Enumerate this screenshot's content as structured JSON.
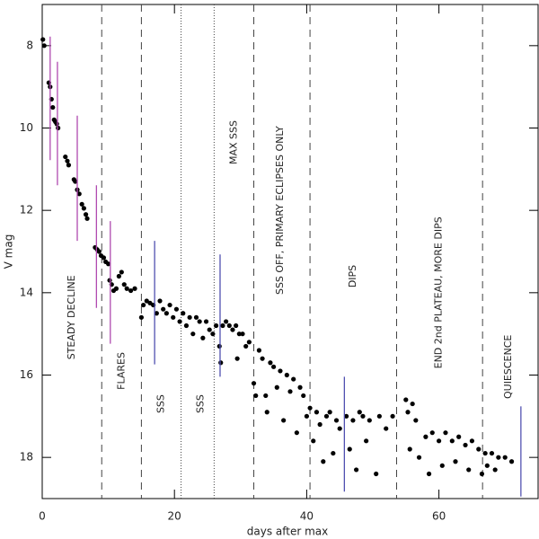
{
  "chart_data": {
    "type": "scatter",
    "x_label": "days after max",
    "y_label": "V mag",
    "xlim": [
      0,
      75
    ],
    "ylim": [
      19,
      7
    ],
    "xticks": [
      0,
      20,
      40,
      60
    ],
    "yticks": [
      8,
      10,
      12,
      14,
      16,
      18
    ],
    "color": "#000000",
    "x": [
      0.1,
      0.3,
      1.0,
      1.2,
      1.4,
      1.6,
      1.8,
      2.0,
      2.2,
      2.4,
      3.5,
      3.8,
      4.0,
      4.8,
      5.0,
      5.3,
      5.6,
      6.0,
      6.3,
      6.6,
      6.8,
      8.0,
      8.3,
      8.6,
      8.9,
      9.3,
      9.6,
      10.0,
      10.2,
      10.5,
      10.8,
      11.2,
      11.6,
      12.0,
      12.4,
      12.8,
      13.4,
      14.0,
      15.0,
      15.3,
      15.8,
      16.3,
      16.8,
      17.3,
      17.8,
      18.3,
      18.8,
      19.3,
      19.8,
      20.3,
      20.8,
      21.3,
      21.8,
      22.3,
      22.8,
      23.3,
      23.8,
      24.3,
      24.8,
      25.3,
      25.8,
      26.3,
      26.8,
      27.0,
      27.3,
      27.8,
      28.3,
      28.8,
      29.3,
      29.8,
      30.3,
      30.8,
      31.3,
      29.5,
      32.0,
      32.3,
      32.8,
      33.3,
      33.8,
      34.0,
      34.5,
      35.0,
      35.5,
      36.0,
      36.5,
      37.0,
      37.5,
      38.0,
      38.5,
      39.0,
      39.5,
      40.0,
      40.5,
      41.0,
      41.5,
      42.0,
      42.5,
      43.0,
      43.5,
      44.0,
      44.5,
      45.0,
      46.0,
      46.5,
      47.0,
      47.5,
      48.0,
      48.5,
      49.0,
      49.5,
      50.5,
      51.0,
      52.0,
      53.0,
      55.0,
      55.3,
      55.6,
      56.0,
      56.5,
      57.0,
      58.0,
      58.5,
      59.0,
      60.0,
      60.5,
      61.0,
      62.0,
      62.5,
      63.0,
      64.0,
      64.5,
      65.0,
      66.0,
      66.5,
      67.0,
      67.3,
      68.0,
      68.5,
      69.0,
      70.0,
      71.0
    ],
    "values": [
      7.85,
      8.0,
      8.9,
      9.0,
      9.3,
      9.5,
      9.8,
      9.85,
      9.9,
      10.0,
      10.7,
      10.8,
      10.9,
      11.25,
      11.3,
      11.5,
      11.6,
      11.85,
      11.95,
      12.1,
      12.2,
      12.9,
      12.95,
      13.0,
      13.1,
      13.15,
      13.25,
      13.3,
      13.7,
      13.8,
      13.95,
      13.9,
      13.6,
      13.5,
      13.8,
      13.9,
      13.95,
      13.9,
      14.6,
      14.3,
      14.2,
      14.25,
      14.3,
      14.5,
      14.2,
      14.4,
      14.5,
      14.3,
      14.6,
      14.4,
      14.7,
      14.5,
      14.8,
      14.6,
      15.0,
      14.6,
      14.7,
      15.1,
      14.7,
      14.9,
      15.0,
      14.8,
      15.3,
      15.7,
      14.8,
      14.7,
      14.8,
      14.9,
      14.8,
      15.0,
      15.0,
      15.3,
      15.2,
      15.6,
      16.2,
      16.5,
      15.4,
      15.6,
      16.5,
      16.9,
      15.7,
      15.8,
      16.3,
      15.9,
      17.1,
      16.0,
      16.4,
      16.1,
      17.4,
      16.3,
      16.5,
      17.0,
      16.8,
      17.6,
      16.9,
      17.2,
      18.1,
      17.0,
      16.9,
      17.9,
      17.1,
      17.3,
      17.0,
      17.8,
      17.1,
      18.3,
      16.9,
      17.0,
      17.6,
      17.1,
      18.4,
      17.0,
      17.3,
      17.0,
      16.6,
      16.9,
      17.8,
      16.7,
      17.1,
      18.0,
      17.5,
      18.4,
      17.4,
      17.6,
      18.2,
      17.4,
      17.6,
      18.1,
      17.5,
      17.7,
      18.3,
      17.6,
      17.8,
      18.4,
      17.9,
      18.2,
      17.9,
      18.3,
      18.0,
      18.0,
      18.1
    ],
    "error_bars": [
      {
        "x": 1.2,
        "low": 7.78,
        "high": 10.78,
        "color": "#b04ab0"
      },
      {
        "x": 2.3,
        "low": 8.39,
        "high": 11.39,
        "color": "#b04ab0"
      },
      {
        "x": 5.3,
        "low": 9.7,
        "high": 12.74,
        "color": "#b04ab0"
      },
      {
        "x": 8.2,
        "low": 11.39,
        "high": 14.37,
        "color": "#b04ab0"
      },
      {
        "x": 10.3,
        "low": 12.26,
        "high": 15.24,
        "color": "#b04ab0"
      },
      {
        "x": 17.0,
        "low": 12.74,
        "high": 15.74,
        "color": "#5050b0"
      },
      {
        "x": 26.9,
        "low": 13.07,
        "high": 16.04,
        "color": "#5050b0"
      },
      {
        "x": 45.7,
        "low": 16.04,
        "high": 18.83,
        "color": "#5050b0"
      },
      {
        "x": 72.4,
        "low": 16.76,
        "high": 18.95,
        "color": "#5050b0"
      }
    ],
    "vlines": [
      {
        "x": 9,
        "style": "dashed"
      },
      {
        "x": 15,
        "style": "dashed"
      },
      {
        "x": 21,
        "style": "dotted"
      },
      {
        "x": 26,
        "style": "dotted"
      },
      {
        "x": 32,
        "style": "dashed"
      },
      {
        "x": 40.5,
        "style": "dashed"
      },
      {
        "x": 53.6,
        "style": "dashed"
      },
      {
        "x": 66.6,
        "style": "dashed"
      }
    ],
    "annotations": [
      {
        "text": "STEADY DECLINE",
        "x": 4.5,
        "y": 14.6
      },
      {
        "text": "FLARES",
        "x": 12,
        "y": 15.9
      },
      {
        "text": "SSS",
        "x": 18,
        "y": 16.7
      },
      {
        "text": "SSS",
        "x": 24,
        "y": 16.7
      },
      {
        "text": "MAX SSS",
        "x": 29,
        "y": 10.35
      },
      {
        "text": "SSS OFF, PRIMARY ECLIPSES ONLY",
        "x": 36,
        "y": 12.0
      },
      {
        "text": "DIPS",
        "x": 47,
        "y": 13.6
      },
      {
        "text": "END 2nd PLATEAU, MORE DIPS",
        "x": 60,
        "y": 14.0
      },
      {
        "text": "QUIESCENCE",
        "x": 70.5,
        "y": 15.8
      }
    ]
  }
}
